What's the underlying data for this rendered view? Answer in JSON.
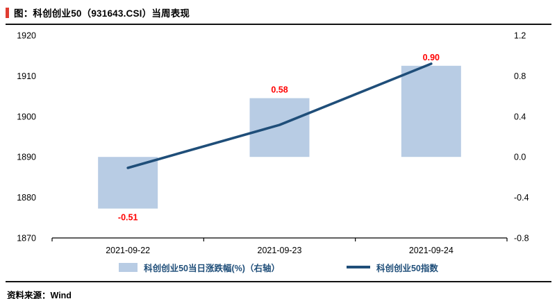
{
  "header": {
    "title": "图：科创创业50（931643.CSI）当周表现",
    "accent_color": "#e03c31"
  },
  "chart_data": {
    "type": "combo",
    "title": "科创创业50（931643.CSI）当周表现",
    "categories": [
      "2021-09-22",
      "2021-09-23",
      "2021-09-24"
    ],
    "series": [
      {
        "name": "科创创业50当日涨跌幅(%)（右轴）",
        "type": "bar",
        "axis": "right",
        "values": [
          -0.51,
          0.58,
          0.9
        ],
        "color": "#b8cce4",
        "label_color": "#ff0000"
      },
      {
        "name": "科创创业50指数",
        "type": "line",
        "axis": "left",
        "values": [
          1887.3,
          1897.9,
          1913.0
        ],
        "color": "#1f4e79"
      }
    ],
    "bar_labels": [
      "-0.51",
      "0.58",
      "0.90"
    ],
    "left_axis": {
      "min": 1870,
      "max": 1920,
      "ticks": [
        "1920",
        "1910",
        "1900",
        "1890",
        "1880",
        "1870"
      ]
    },
    "right_axis": {
      "min": -0.8,
      "max": 1.2,
      "ticks": [
        "1.2",
        "0.8",
        "0.4",
        "0.0",
        "-0.4",
        "-0.8"
      ]
    },
    "grid": false,
    "legend_position": "bottom"
  },
  "legend": {
    "items": [
      {
        "label": "科创创业50当日涨跌幅(%)（右轴）",
        "swatch": "bar",
        "color": "#b8cce4"
      },
      {
        "label": "科创创业50指数",
        "swatch": "line",
        "color": "#1f4e79"
      }
    ]
  },
  "footer": {
    "source": "资料来源：Wind"
  }
}
